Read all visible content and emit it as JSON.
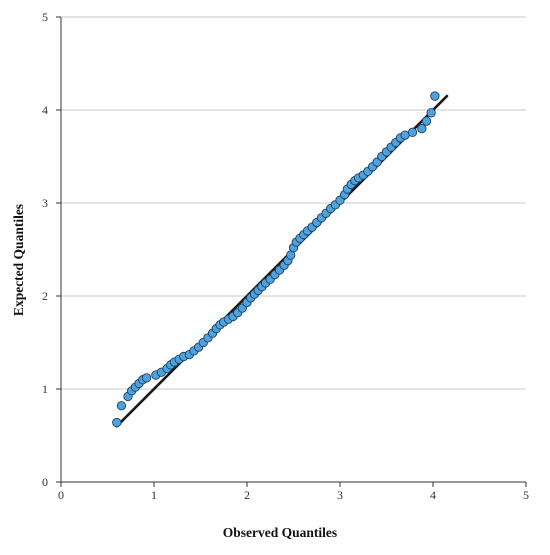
{
  "chart_data": {
    "type": "scatter",
    "title": "",
    "xlabel": "Observed Quantiles",
    "ylabel": "Expected Quantiles",
    "xlim": [
      0,
      5
    ],
    "ylim": [
      0,
      5
    ],
    "xticks": [
      "0",
      "1",
      "2",
      "3",
      "4",
      "5"
    ],
    "yticks": [
      "0",
      "1",
      "2",
      "3",
      "4",
      "5"
    ],
    "grid": "horizontal",
    "legend": "none",
    "reference_line": {
      "x": [
        0.6,
        4.15
      ],
      "y": [
        0.6,
        4.15
      ],
      "color": "#1a1a1a"
    },
    "point_color": "#4fa3dd",
    "point_edge_color": "#1f3f63",
    "points": [
      [
        0.6,
        0.64
      ],
      [
        0.65,
        0.82
      ],
      [
        0.72,
        0.92
      ],
      [
        0.76,
        0.98
      ],
      [
        0.8,
        1.02
      ],
      [
        0.84,
        1.06
      ],
      [
        0.88,
        1.1
      ],
      [
        0.92,
        1.12
      ],
      [
        1.02,
        1.15
      ],
      [
        1.08,
        1.18
      ],
      [
        1.14,
        1.22
      ],
      [
        1.18,
        1.26
      ],
      [
        1.22,
        1.29
      ],
      [
        1.27,
        1.32
      ],
      [
        1.32,
        1.35
      ],
      [
        1.38,
        1.37
      ],
      [
        1.43,
        1.41
      ],
      [
        1.48,
        1.45
      ],
      [
        1.53,
        1.5
      ],
      [
        1.58,
        1.55
      ],
      [
        1.63,
        1.6
      ],
      [
        1.67,
        1.65
      ],
      [
        1.71,
        1.69
      ],
      [
        1.75,
        1.72
      ],
      [
        1.8,
        1.75
      ],
      [
        1.85,
        1.78
      ],
      [
        1.9,
        1.82
      ],
      [
        1.95,
        1.87
      ],
      [
        2.0,
        1.93
      ],
      [
        2.04,
        1.98
      ],
      [
        2.08,
        2.02
      ],
      [
        2.12,
        2.06
      ],
      [
        2.16,
        2.1
      ],
      [
        2.2,
        2.14
      ],
      [
        2.25,
        2.18
      ],
      [
        2.3,
        2.23
      ],
      [
        2.35,
        2.28
      ],
      [
        2.4,
        2.33
      ],
      [
        2.44,
        2.38
      ],
      [
        2.47,
        2.44
      ],
      [
        2.5,
        2.52
      ],
      [
        2.53,
        2.58
      ],
      [
        2.57,
        2.62
      ],
      [
        2.61,
        2.66
      ],
      [
        2.65,
        2.7
      ],
      [
        2.7,
        2.74
      ],
      [
        2.75,
        2.79
      ],
      [
        2.8,
        2.84
      ],
      [
        2.85,
        2.89
      ],
      [
        2.9,
        2.94
      ],
      [
        2.95,
        2.98
      ],
      [
        3.0,
        3.03
      ],
      [
        3.05,
        3.09
      ],
      [
        3.08,
        3.15
      ],
      [
        3.12,
        3.2
      ],
      [
        3.16,
        3.24
      ],
      [
        3.2,
        3.27
      ],
      [
        3.25,
        3.3
      ],
      [
        3.3,
        3.34
      ],
      [
        3.35,
        3.39
      ],
      [
        3.4,
        3.44
      ],
      [
        3.45,
        3.5
      ],
      [
        3.5,
        3.55
      ],
      [
        3.55,
        3.6
      ],
      [
        3.6,
        3.65
      ],
      [
        3.65,
        3.7
      ],
      [
        3.7,
        3.73
      ],
      [
        3.78,
        3.76
      ],
      [
        3.88,
        3.8
      ],
      [
        3.93,
        3.88
      ],
      [
        3.98,
        3.97
      ],
      [
        4.02,
        4.15
      ]
    ]
  }
}
